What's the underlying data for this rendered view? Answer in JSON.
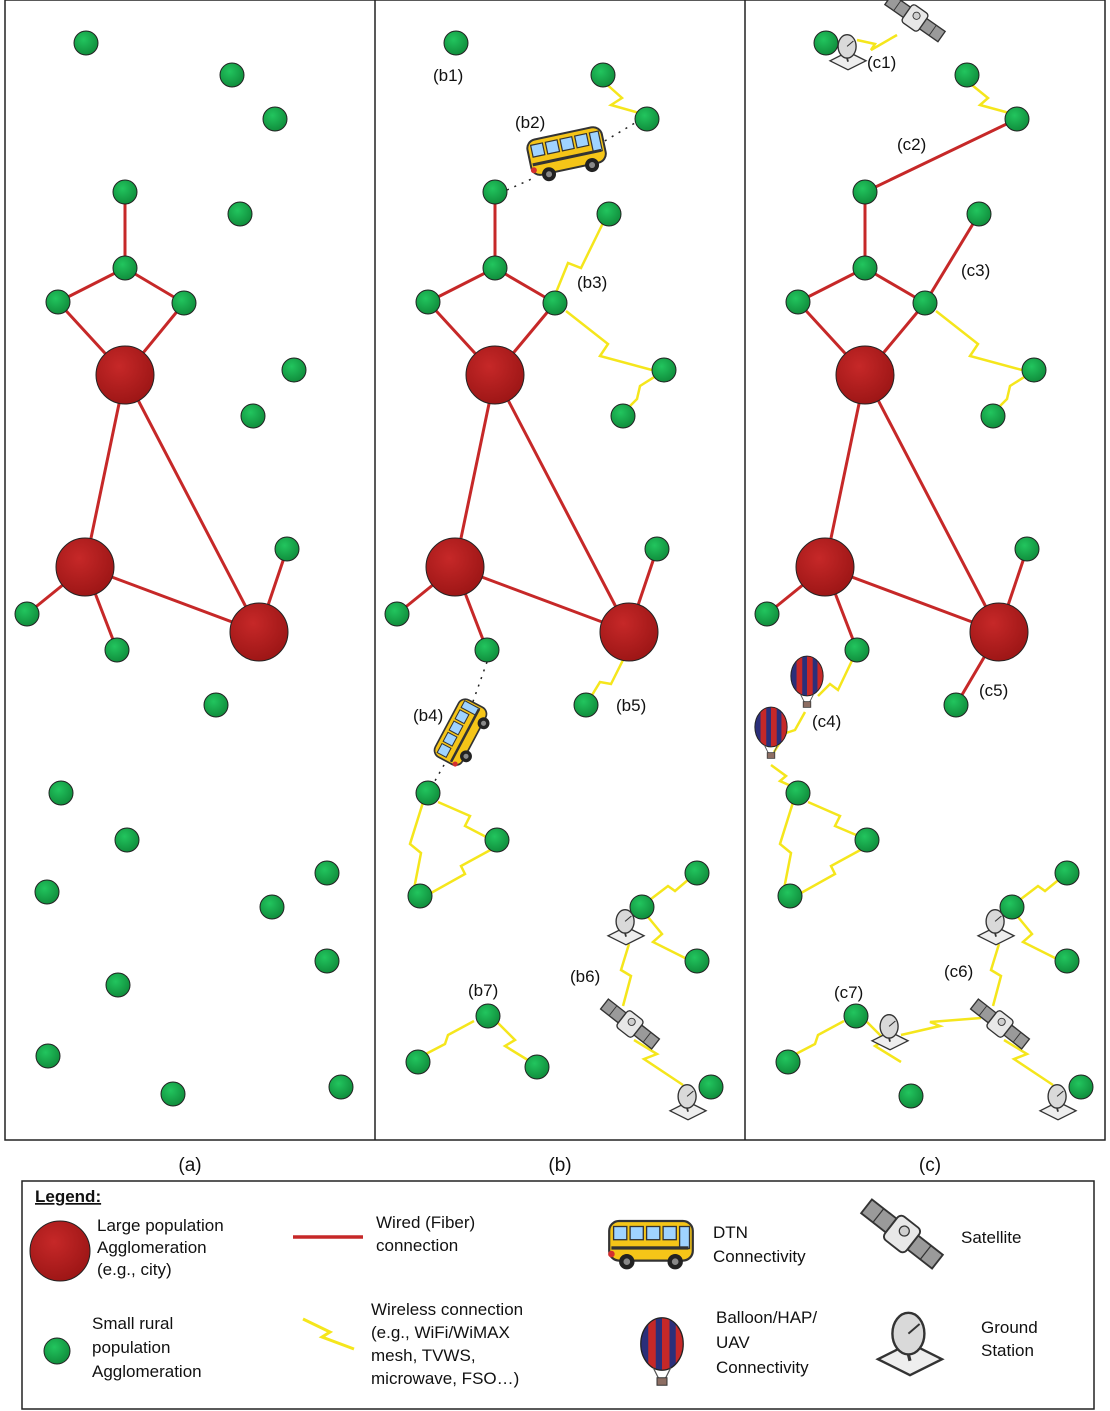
{
  "panels": [
    {
      "caption": "(a)"
    },
    {
      "caption": "(b)"
    },
    {
      "caption": "(c)"
    }
  ],
  "labels": {
    "b1": "(b1)",
    "b2": "(b2)",
    "b3": "(b3)",
    "b4": "(b4)",
    "b5": "(b5)",
    "b6": "(b6)",
    "b7": "(b7)",
    "c1": "(c1)",
    "c2": "(c2)",
    "c3": "(c3)",
    "c4": "(c4)",
    "c5": "(c5)",
    "c6": "(c6)",
    "c7": "(c7)"
  },
  "legend": {
    "title": "Legend:",
    "large": [
      "Large population",
      "Agglomeration",
      "(e.g., city)"
    ],
    "small": [
      "Small rural",
      "population",
      "Agglomeration"
    ],
    "wired": [
      "Wired (Fiber)",
      "connection"
    ],
    "wireless": [
      "Wireless connection",
      "(e.g., WiFi/WiMAX",
      "mesh, TVWS,",
      "microwave, FSO…)"
    ],
    "dtn": [
      "DTN",
      "Connectivity"
    ],
    "balloon": [
      "Balloon/HAP/",
      "UAV",
      "Connectivity"
    ],
    "satellite": [
      "Satellite"
    ],
    "ground": [
      "Ground",
      "Station"
    ]
  },
  "colors": {
    "large_node": "#b71c1c",
    "small_node": "#16a34a",
    "wired": "#c62828",
    "wireless": "#f5e61c",
    "frame": "#222222"
  },
  "icons": [
    "bus-icon",
    "satellite-icon",
    "ground-station-icon",
    "balloon-icon",
    "wireless-bolt-icon"
  ]
}
